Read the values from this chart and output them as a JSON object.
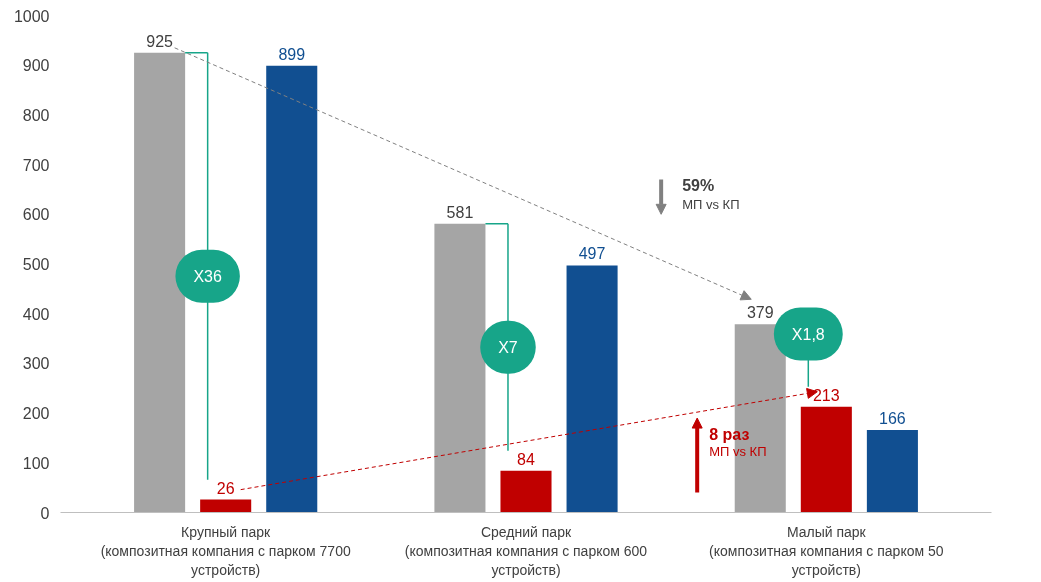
{
  "chart_data": {
    "type": "bar",
    "categories": [
      "Крупный парк\n(композитная компания с парком 7700\nустройств)",
      "Средний парк\n(композитная компания с парком 600\nустройств)",
      "Малый парк\n(композитная компания с парком 50\nустройств)"
    ],
    "series": [
      {
        "color": "#a5a5a5",
        "values": [
          925,
          581,
          379
        ]
      },
      {
        "color": "#c00000",
        "values": [
          26,
          84,
          213
        ]
      },
      {
        "color": "#114f91",
        "values": [
          899,
          497,
          166
        ]
      }
    ],
    "ylim": [
      0,
      1000
    ],
    "yticks": [
      0,
      100,
      200,
      300,
      400,
      500,
      600,
      700,
      800,
      900,
      1000
    ],
    "grid": false,
    "data_labels": true,
    "annotations": [
      "X36",
      "X7",
      "X1,8",
      "59%",
      "МП vs КП",
      "8 раз",
      "МП vs КП"
    ]
  }
}
